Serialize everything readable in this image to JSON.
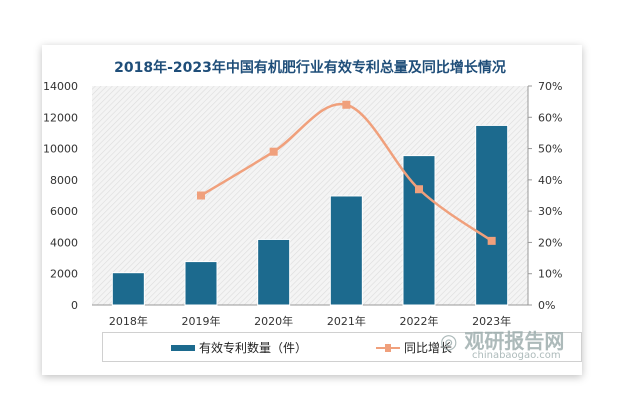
{
  "chart_data": {
    "type": "bar",
    "title": "2018年-2023年中国有机肥行业有效专利总量及同比增长情况",
    "categories": [
      "2018年",
      "2019年",
      "2020年",
      "2021年",
      "2022年",
      "2023年"
    ],
    "series": [
      {
        "name": "有效专利数量（件）",
        "type": "bar",
        "axis": "left",
        "color": "#1c6a8e",
        "values": [
          2065,
          2775,
          4190,
          6970,
          9550,
          11480
        ]
      },
      {
        "name": "同比增长",
        "type": "line",
        "axis": "right",
        "color": "#f0a07c",
        "values": [
          null,
          35,
          49,
          64,
          37,
          20.5
        ]
      }
    ],
    "ylim": [
      0,
      14000
    ],
    "yticks": [
      "0",
      "2000",
      "4000",
      "6000",
      "8000",
      "10000",
      "12000",
      "14000"
    ],
    "y2lim": [
      0,
      70
    ],
    "y2ticks": [
      "0%",
      "10%",
      "20%",
      "30%",
      "40%",
      "50%",
      "60%",
      "70%"
    ],
    "legend": "bottom"
  },
  "watermark": {
    "name": "观研报告网",
    "url": "chinabaogao.com"
  }
}
